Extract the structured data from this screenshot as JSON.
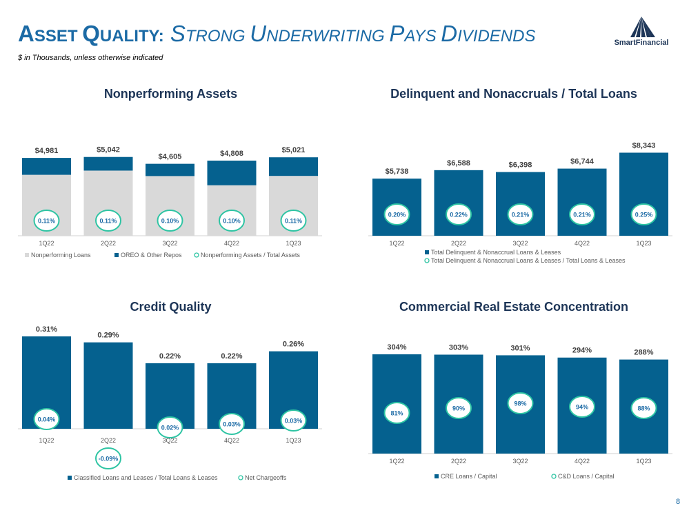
{
  "header": {
    "title_a1": "A",
    "title_a2": "SSET ",
    "title_q1": "Q",
    "title_q2": "UALITY:",
    "title_s1": "S",
    "title_s2": "TRONG ",
    "title_u1": "U",
    "title_u2": "NDERWRITING ",
    "title_p1": "P",
    "title_p2": "AYS ",
    "title_d1": "D",
    "title_d2": "IVIDENDS",
    "subtitle": "$ in Thousands, unless otherwise indicated",
    "logo_text": "SmartFinancial"
  },
  "page_number": "8",
  "colors": {
    "dark": "#05618f",
    "light": "#d9d9d9",
    "teal": "#2ec4a3",
    "title": "#1d3557"
  },
  "chart_data": [
    {
      "id": "npa",
      "type": "bar",
      "title": "Nonperforming Assets",
      "categories": [
        "1Q22",
        "2Q22",
        "3Q22",
        "4Q22",
        "1Q23"
      ],
      "series": [
        {
          "name": "Nonperforming Loans",
          "values": [
            3900,
            4170,
            3820,
            3230,
            3830
          ]
        },
        {
          "name": "OREO & Other Repos",
          "values": [
            1081,
            872,
            785,
            1578,
            1191
          ]
        }
      ],
      "totals": [
        "$4,981",
        "$5,042",
        "$4,605",
        "$4,808",
        "$5,021"
      ],
      "ratio": {
        "name": "Nonperforming Assets / Total Assets",
        "labels": [
          "0.11%",
          "0.11%",
          "0.10%",
          "0.10%",
          "0.11%"
        ]
      },
      "ylim": [
        0,
        6000
      ]
    },
    {
      "id": "delinq",
      "type": "bar",
      "title": "Delinquent and Nonaccruals / Total Loans",
      "categories": [
        "1Q22",
        "2Q22",
        "3Q22",
        "4Q22",
        "1Q23"
      ],
      "series": [
        {
          "name": "Total Delinquent & Nonaccrual Loans & Leases",
          "values": [
            5738,
            6588,
            6398,
            6744,
            8343
          ]
        }
      ],
      "totals": [
        "$5,738",
        "$6,588",
        "$6,398",
        "$6,744",
        "$8,343"
      ],
      "ratio": {
        "name": "Total Delinquent & Nonaccrual Loans & Leases / Total Loans & Leases",
        "labels": [
          "0.20%",
          "0.22%",
          "0.21%",
          "0.21%",
          "0.25%"
        ]
      },
      "ylim": [
        0,
        9000
      ]
    },
    {
      "id": "credit",
      "type": "bar",
      "title": "Credit Quality",
      "categories": [
        "1Q22",
        "2Q22",
        "3Q22",
        "4Q22",
        "1Q23"
      ],
      "series": [
        {
          "name": "Classified Loans and Leases / Total Loans & Leases",
          "values": [
            0.31,
            0.29,
            0.22,
            0.22,
            0.26
          ]
        }
      ],
      "totals": [
        "0.31%",
        "0.29%",
        "0.22%",
        "0.22%",
        "0.26%"
      ],
      "ratio": {
        "name": "Net Chargeoffs",
        "labels": [
          "0.04%",
          "-0.09%",
          "0.02%",
          "0.03%",
          "0.03%"
        ]
      },
      "ylim": [
        0,
        0.31
      ]
    },
    {
      "id": "cre",
      "type": "bar",
      "title": "Commercial Real Estate Concentration",
      "categories": [
        "1Q22",
        "2Q22",
        "3Q22",
        "4Q22",
        "1Q23"
      ],
      "series": [
        {
          "name": "CRE Loans / Capital",
          "values": [
            304,
            303,
            301,
            294,
            288
          ]
        }
      ],
      "totals": [
        "304%",
        "303%",
        "301%",
        "294%",
        "288%"
      ],
      "ratio": {
        "name": "C&D Loans / Capital",
        "labels": [
          "81%",
          "90%",
          "98%",
          "94%",
          "88%"
        ]
      },
      "ylim": [
        0,
        304
      ]
    }
  ]
}
